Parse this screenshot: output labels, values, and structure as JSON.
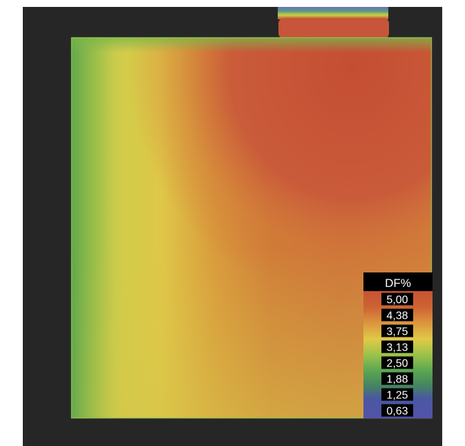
{
  "chart_data": {
    "type": "heatmap",
    "title": "",
    "xlabel": "",
    "ylabel": "",
    "grid": false,
    "colorbar": {
      "title": "DF%",
      "placement": "bottom-right",
      "ticks": [
        "5,00",
        "4,38",
        "3,75",
        "3,13",
        "2,50",
        "1,88",
        "1,25",
        "0,63"
      ],
      "values": [
        5.0,
        4.38,
        3.75,
        3.13,
        2.5,
        1.88,
        1.25,
        0.63
      ],
      "colors": [
        "#c65433",
        "#cf6a36",
        "#dc953e",
        "#d8cf4c",
        "#8fbf4c",
        "#5ca653",
        "#4a6f8a",
        "#5252a8"
      ]
    },
    "field_colors": {
      "high": "#c65433",
      "mid_high": "#d98a3a",
      "mid": "#d6c949",
      "low": "#6aac4f",
      "background": "#262626"
    }
  }
}
